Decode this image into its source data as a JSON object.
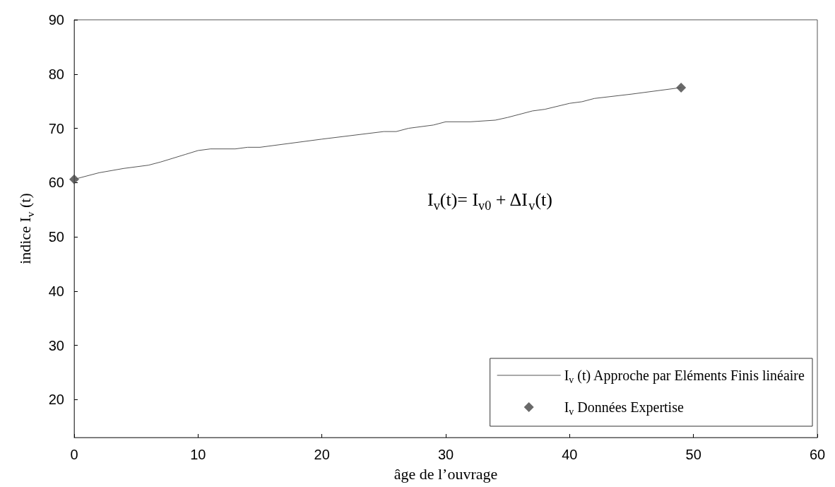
{
  "chart_data": {
    "type": "line",
    "xlabel": "âge de l’ouvrage",
    "ylabel": "indice I$_{v}$ (t)",
    "annotations": [
      "I$_{v}$(t)= I$_{v0}$ + ΔI$_{v}$(t)"
    ],
    "xlim": [
      0,
      60
    ],
    "xticks": [
      0,
      10,
      20,
      30,
      40,
      50,
      60
    ],
    "ylim": [
      13,
      90
    ],
    "yticks": [
      20,
      30,
      40,
      50,
      60,
      70,
      80,
      90
    ],
    "grid": false,
    "legend": "bottom right",
    "series": [
      {
        "name": "I$_{v}$ (t) Approche par Eléments Finis linéaire",
        "color": "#555555",
        "marker": "none",
        "line_style": "solid",
        "x": [
          0,
          2,
          4,
          6,
          7,
          9,
          10,
          11,
          13,
          14,
          15,
          20,
          25,
          26,
          27,
          29,
          30,
          32,
          34,
          35,
          37,
          38,
          40,
          41,
          42,
          45,
          49
        ],
        "values": [
          60.6,
          61.8,
          62.6,
          63.2,
          63.8,
          65.2,
          65.9,
          66.2,
          66.2,
          66.5,
          66.5,
          68,
          69.4,
          69.4,
          70,
          70.6,
          71.2,
          71.2,
          71.5,
          72,
          73.2,
          73.5,
          74.6,
          74.9,
          75.5,
          76.3,
          77.5
        ]
      },
      {
        "name": "I$_{v}$ Données Expertise",
        "type": "scatter",
        "color": "#444444",
        "marker": "diamond",
        "x": [
          0,
          49
        ],
        "values": [
          60.6,
          77.5
        ]
      }
    ]
  }
}
